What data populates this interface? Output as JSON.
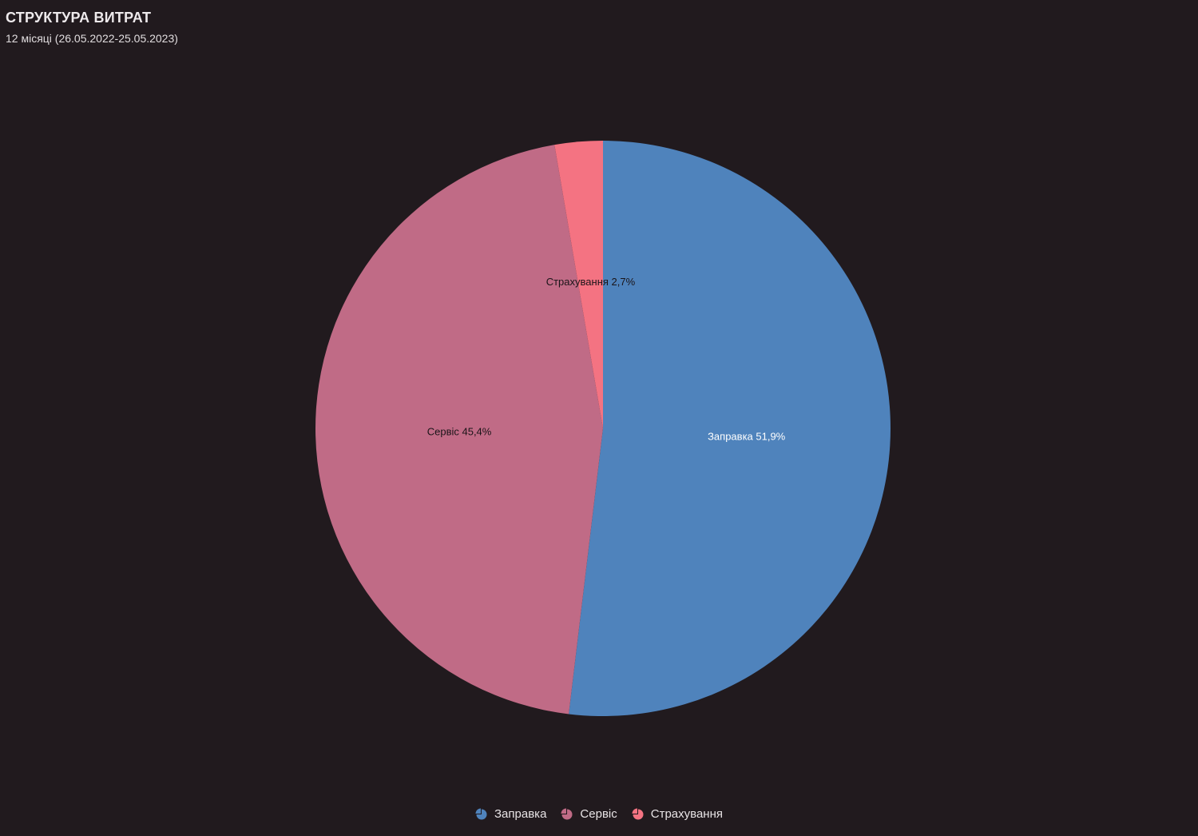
{
  "header": {
    "title": "СТРУКТУРА ВИТРАТ",
    "subtitle": "12 місяці (26.05.2022-25.05.2023)"
  },
  "chart_data": {
    "type": "pie",
    "series": [
      {
        "name": "Заправка",
        "value": 51.9,
        "label": "Заправка 51,9%",
        "color": "#4f83bc",
        "label_color": "#ffffff"
      },
      {
        "name": "Сервіс",
        "value": 45.4,
        "label": "Сервіс 45,4%",
        "color": "#c06b86",
        "label_color": "#1a1418"
      },
      {
        "name": "Страхування",
        "value": 2.7,
        "label": "Страхування 2,7%",
        "color": "#f47382",
        "label_color": "#1a1418"
      }
    ],
    "start": "top",
    "direction": "clockwise",
    "legend_position": "bottom-center"
  },
  "legend": {
    "items": [
      {
        "label": "Заправка",
        "color": "#4f83bc",
        "icon": "pie-icon"
      },
      {
        "label": "Сервіс",
        "color": "#c06b86",
        "icon": "pie-icon"
      },
      {
        "label": "Страхування",
        "color": "#f47382",
        "icon": "pie-icon"
      }
    ]
  }
}
